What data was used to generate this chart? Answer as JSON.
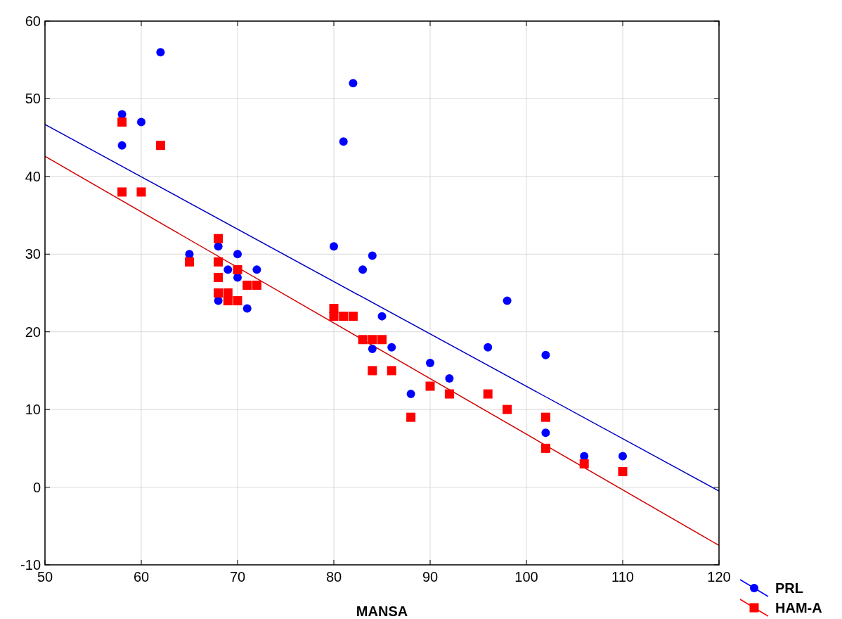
{
  "chart_data": {
    "type": "scatter",
    "xlabel": "MANSA",
    "xlim": [
      50,
      120
    ],
    "ylim": [
      -10,
      60
    ],
    "xticks": [
      50,
      60,
      70,
      80,
      90,
      100,
      110,
      120
    ],
    "yticks": [
      -10,
      0,
      10,
      20,
      30,
      40,
      50,
      60
    ],
    "grid": true,
    "legend": "bottom right",
    "series": [
      {
        "name": "PRL",
        "color": "#0000ff",
        "marker": "circle",
        "x": [
          58,
          58,
          60,
          62,
          65,
          68,
          68,
          69,
          70,
          70,
          71,
          72,
          80,
          81,
          82,
          83,
          84,
          84,
          85,
          86,
          88,
          90,
          92,
          96,
          98,
          102,
          102,
          106,
          110
        ],
        "values": [
          48,
          44,
          47,
          56,
          30,
          31,
          24,
          28,
          30,
          27,
          23,
          28,
          31,
          44.5,
          52,
          28,
          29.8,
          17.8,
          22,
          18,
          12,
          16,
          14,
          18,
          24,
          17,
          7,
          4,
          4
        ]
      },
      {
        "name": "HAM-A",
        "color": "#ff0000",
        "marker": "square",
        "x": [
          58,
          58,
          60,
          62,
          65,
          68,
          68,
          68,
          68,
          69,
          69,
          70,
          70,
          71,
          72,
          80,
          80,
          81,
          82,
          83,
          84,
          85,
          84,
          86,
          88,
          90,
          92,
          96,
          98,
          102,
          102,
          106,
          110
        ],
        "values": [
          47,
          38,
          38,
          44,
          29,
          32,
          29,
          27,
          25,
          25,
          24,
          28,
          24,
          26,
          26,
          23,
          22,
          22,
          22,
          19,
          19,
          19,
          15,
          15,
          9,
          13,
          12,
          12,
          10,
          9,
          5,
          3,
          2
        ]
      },
      {
        "type": "line",
        "color": "#0000c0",
        "line_style": "solid",
        "x": [
          50,
          120
        ],
        "values": [
          46.7,
          -0.5
        ]
      },
      {
        "type": "line",
        "color": "#d00000",
        "line_style": "solid",
        "x": [
          50,
          120
        ],
        "values": [
          42.6,
          -7.5
        ]
      }
    ]
  }
}
